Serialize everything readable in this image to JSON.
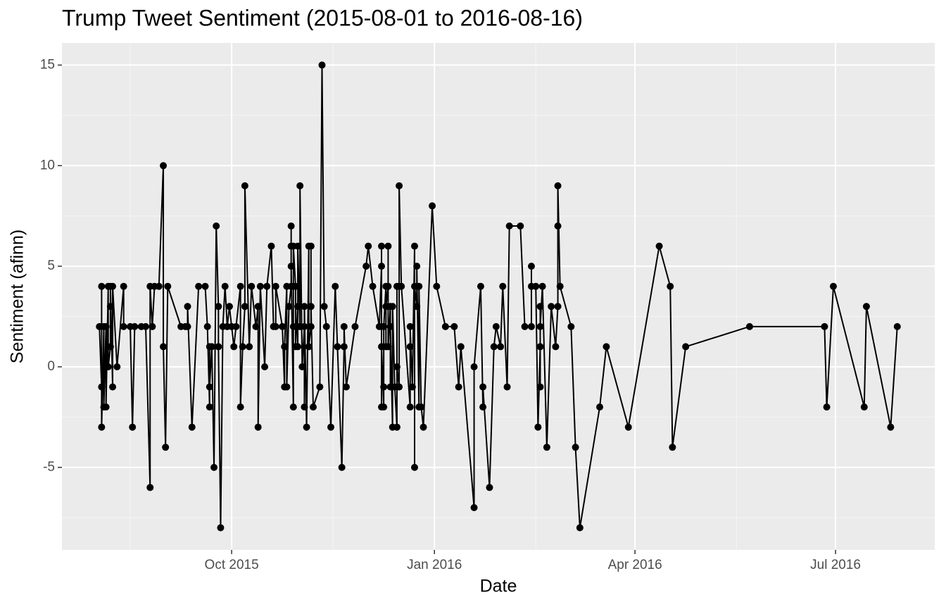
{
  "chart_data": {
    "type": "line",
    "title": "Trump Tweet Sentiment (2015-08-01 to 2016-08-16)",
    "x_label": "Date",
    "y_label": "Sentiment (afinn)",
    "color": "#000000",
    "grid": true,
    "x": [
      "2015-08-02",
      "2015-08-03",
      "2015-08-03",
      "2015-08-03",
      "2015-08-04",
      "2015-08-04",
      "2015-08-05",
      "2015-08-05",
      "2015-08-06",
      "2015-08-06",
      "2015-08-07",
      "2015-08-07",
      "2015-08-07",
      "2015-08-08",
      "2015-08-08",
      "2015-08-10",
      "2015-08-13",
      "2015-08-13",
      "2015-08-16",
      "2015-08-17",
      "2015-08-18",
      "2015-08-21",
      "2015-08-23",
      "2015-08-25",
      "2015-08-25",
      "2015-08-26",
      "2015-08-27",
      "2015-08-29",
      "2015-08-31",
      "2015-08-31",
      "2015-09-01",
      "2015-09-02",
      "2015-09-08",
      "2015-09-10",
      "2015-09-11",
      "2015-09-11",
      "2015-09-13",
      "2015-09-16",
      "2015-09-19",
      "2015-09-20",
      "2015-09-21",
      "2015-09-21",
      "2015-09-21",
      "2015-09-22",
      "2015-09-23",
      "2015-09-24",
      "2015-09-25",
      "2015-09-25",
      "2015-09-26",
      "2015-09-27",
      "2015-09-28",
      "2015-09-29",
      "2015-09-30",
      "2015-10-01",
      "2015-10-02",
      "2015-10-03",
      "2015-10-05",
      "2015-10-05",
      "2015-10-06",
      "2015-10-07",
      "2015-10-07",
      "2015-10-09",
      "2015-10-10",
      "2015-10-12",
      "2015-10-13",
      "2015-10-13",
      "2015-10-14",
      "2015-10-16",
      "2015-10-17",
      "2015-10-19",
      "2015-10-20",
      "2015-10-21",
      "2015-10-21",
      "2015-10-24",
      "2015-10-25",
      "2015-10-25",
      "2015-10-26",
      "2015-10-26",
      "2015-10-27",
      "2015-10-28",
      "2015-10-28",
      "2015-10-28",
      "2015-10-28",
      "2015-10-29",
      "2015-10-29",
      "2015-10-29",
      "2015-10-29",
      "2015-10-30",
      "2015-10-30",
      "2015-10-31",
      "2015-10-31",
      "2015-10-31",
      "2015-11-01",
      "2015-11-01",
      "2015-11-02",
      "2015-11-03",
      "2015-11-03",
      "2015-11-03",
      "2015-11-04",
      "2015-11-05",
      "2015-11-05",
      "2015-11-06",
      "2015-11-06",
      "2015-11-06",
      "2015-11-07",
      "2015-11-10",
      "2015-11-11",
      "2015-11-12",
      "2015-11-13",
      "2015-11-15",
      "2015-11-17",
      "2015-11-18",
      "2015-11-20",
      "2015-11-21",
      "2015-11-21",
      "2015-11-22",
      "2015-11-26",
      "2015-12-01",
      "2015-12-02",
      "2015-12-04",
      "2015-12-07",
      "2015-12-08",
      "2015-12-08",
      "2015-12-08",
      "2015-12-08",
      "2015-12-09",
      "2015-12-09",
      "2015-12-09",
      "2015-12-10",
      "2015-12-10",
      "2015-12-10",
      "2015-12-11",
      "2015-12-11",
      "2015-12-11",
      "2015-12-12",
      "2015-12-12",
      "2015-12-12",
      "2015-12-13",
      "2015-12-13",
      "2015-12-14",
      "2015-12-15",
      "2015-12-15",
      "2015-12-15",
      "2015-12-16",
      "2015-12-16",
      "2015-12-16",
      "2015-12-17",
      "2015-12-21",
      "2015-12-21",
      "2015-12-21",
      "2015-12-22",
      "2015-12-23",
      "2015-12-23",
      "2015-12-23",
      "2015-12-24",
      "2015-12-24",
      "2015-12-25",
      "2015-12-25",
      "2015-12-26",
      "2015-12-27",
      "2015-12-31",
      "2016-01-02",
      "2016-01-06",
      "2016-01-10",
      "2016-01-12",
      "2016-01-13",
      "2016-01-19",
      "2016-01-19",
      "2016-01-22",
      "2016-01-23",
      "2016-01-23",
      "2016-01-26",
      "2016-01-28",
      "2016-01-29",
      "2016-01-31",
      "2016-02-01",
      "2016-02-03",
      "2016-02-04",
      "2016-02-09",
      "2016-02-11",
      "2016-02-14",
      "2016-02-14",
      "2016-02-14",
      "2016-02-16",
      "2016-02-17",
      "2016-02-18",
      "2016-02-18",
      "2016-02-18",
      "2016-02-18",
      "2016-02-19",
      "2016-02-21",
      "2016-02-23",
      "2016-02-25",
      "2016-02-26",
      "2016-02-26",
      "2016-02-26",
      "2016-02-27",
      "2016-03-03",
      "2016-03-05",
      "2016-03-07",
      "2016-03-16",
      "2016-03-19",
      "2016-03-29",
      "2016-04-12",
      "2016-04-17",
      "2016-04-18",
      "2016-04-24",
      "2016-05-23",
      "2016-06-26",
      "2016-06-27",
      "2016-06-30",
      "2016-07-14",
      "2016-07-15",
      "2016-07-26",
      "2016-07-29"
    ],
    "values": [
      2,
      -1,
      4,
      -3,
      2,
      -2,
      2,
      -2,
      4,
      0,
      1,
      3,
      4,
      -1,
      4,
      0,
      4,
      2,
      2,
      -3,
      2,
      2,
      2,
      -6,
      4,
      2,
      4,
      4,
      10,
      1,
      -4,
      4,
      2,
      2,
      2,
      3,
      -3,
      4,
      4,
      2,
      -2,
      1,
      -1,
      1,
      -5,
      7,
      3,
      1,
      -8,
      2,
      4,
      2,
      3,
      2,
      1,
      2,
      4,
      -2,
      1,
      3,
      9,
      1,
      4,
      2,
      3,
      -3,
      4,
      0,
      4,
      6,
      2,
      2,
      4,
      2,
      -1,
      1,
      4,
      -1,
      3,
      4,
      6,
      7,
      5,
      -2,
      4,
      2,
      6,
      4,
      1,
      3,
      1,
      6,
      2,
      9,
      0,
      2,
      -2,
      3,
      -3,
      6,
      1,
      2,
      6,
      3,
      -2,
      -1,
      15,
      3,
      2,
      -3,
      4,
      1,
      -5,
      1,
      2,
      -1,
      2,
      5,
      6,
      4,
      2,
      5,
      -2,
      6,
      1,
      -2,
      -1,
      2,
      4,
      1,
      3,
      4,
      6,
      1,
      3,
      -1,
      2,
      -3,
      3,
      -1,
      -3,
      4,
      0,
      -1,
      4,
      9,
      4,
      -2,
      1,
      2,
      -1,
      6,
      -5,
      4,
      3,
      5,
      -2,
      4,
      -2,
      -3,
      8,
      4,
      2,
      2,
      -1,
      1,
      -7,
      0,
      4,
      -2,
      -1,
      -6,
      1,
      2,
      1,
      4,
      -1,
      7,
      7,
      2,
      2,
      5,
      4,
      4,
      -3,
      1,
      -1,
      3,
      2,
      4,
      -4,
      3,
      1,
      3,
      7,
      9,
      4,
      2,
      -4,
      -8,
      -2,
      1,
      -3,
      6,
      4,
      -4,
      1,
      2,
      2,
      -2,
      4,
      -2,
      3,
      -3,
      2
    ],
    "xlim": [
      "2015-07-16",
      "2016-08-15"
    ],
    "xticks": [
      {
        "value": "2015-10-01",
        "label": "Oct 2015"
      },
      {
        "value": "2016-01-01",
        "label": "Jan 2016"
      },
      {
        "value": "2016-04-01",
        "label": "Apr 2016"
      },
      {
        "value": "2016-07-01",
        "label": "Jul 2016"
      }
    ],
    "ylim": [
      -9.1,
      16.1
    ],
    "yticks": [
      -5,
      0,
      5,
      10,
      15
    ]
  }
}
